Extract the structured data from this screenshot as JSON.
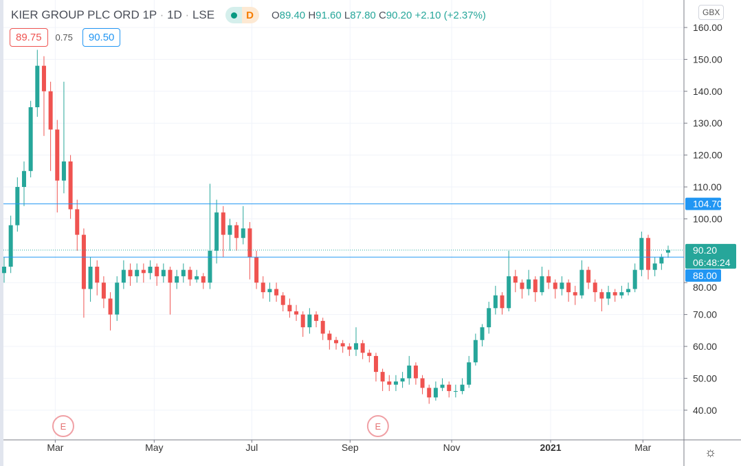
{
  "header": {
    "symbol": "KIER GROUP PLC ORD 1P",
    "sep": "·",
    "interval": "1D",
    "exchange": "LSE",
    "delay_badge": "D",
    "o_label": "O",
    "o": "89.40",
    "h_label": "H",
    "h": "91.60",
    "l_label": "L",
    "l": "87.80",
    "c_label": "C",
    "c": "90.20",
    "change": "+2.10 (+2.37%)"
  },
  "quote": {
    "bid": "89.75",
    "spread": "0.75",
    "ask": "90.50"
  },
  "currency": "GBX",
  "colors": {
    "up": "#26a69a",
    "down": "#ef5350",
    "hline": "#2196f3",
    "last": "#26a69a"
  },
  "chart_data": {
    "type": "candlestick",
    "title": "KIER GROUP PLC ORD 1P · 1D · LSE",
    "ylim": [
      30,
      164
    ],
    "yticks": [
      "160.00",
      "150.00",
      "140.00",
      "130.00",
      "120.00",
      "110.00",
      "100.00",
      "80.00",
      "70.00",
      "60.00",
      "50.00",
      "40.00"
    ],
    "yticks_values": [
      160,
      150,
      140,
      130,
      120,
      110,
      100,
      80,
      70,
      60,
      50,
      40
    ],
    "xticks": [
      {
        "label": "Mar",
        "i": 7.7
      },
      {
        "label": "May",
        "i": 22.6
      },
      {
        "label": "Jul",
        "i": 37.3
      },
      {
        "label": "Sep",
        "i": 52.1
      },
      {
        "label": "Nov",
        "i": 67.4
      },
      {
        "label": "2021",
        "i": 82.3,
        "bold": true
      },
      {
        "label": "Mar",
        "i": 96.2
      }
    ],
    "hlines": [
      {
        "value": 104.7,
        "label": "104.70"
      },
      {
        "value": 88.0,
        "label": "88.00"
      }
    ],
    "last": {
      "value": 90.2,
      "label": "90.20",
      "countdown": "06:48:24"
    },
    "events": [
      {
        "label": "E",
        "i": 8.9
      },
      {
        "label": "E",
        "i": 56.3
      }
    ],
    "candles": [
      [
        83,
        88,
        80,
        85
      ],
      [
        85,
        101,
        83,
        98
      ],
      [
        98,
        113,
        96,
        110
      ],
      [
        110,
        118,
        104,
        115
      ],
      [
        115,
        137,
        113,
        135
      ],
      [
        135,
        153,
        132,
        148
      ],
      [
        148,
        151,
        126,
        140
      ],
      [
        140,
        143,
        115,
        128
      ],
      [
        128,
        131,
        102,
        112
      ],
      [
        112,
        143,
        108,
        118
      ],
      [
        118,
        120,
        100,
        103
      ],
      [
        103,
        106,
        90,
        95
      ],
      [
        95,
        97,
        69,
        78
      ],
      [
        78,
        88,
        74,
        85
      ],
      [
        85,
        87,
        76,
        80
      ],
      [
        80,
        82,
        72,
        75
      ],
      [
        75,
        77,
        65,
        70
      ],
      [
        70,
        82,
        68,
        80
      ],
      [
        80,
        87,
        78,
        84
      ],
      [
        84,
        86,
        79,
        82
      ],
      [
        82,
        86,
        80,
        84
      ],
      [
        84,
        86,
        80,
        83
      ],
      [
        83,
        87,
        81,
        85
      ],
      [
        85,
        86,
        79,
        82
      ],
      [
        82,
        86,
        80,
        84
      ],
      [
        84,
        85,
        70,
        80
      ],
      [
        80,
        84,
        78,
        82
      ],
      [
        82,
        86,
        80,
        84
      ],
      [
        84,
        85,
        79,
        81
      ],
      [
        81,
        84,
        80,
        82
      ],
      [
        82,
        83,
        78,
        80
      ],
      [
        80,
        111,
        78,
        90
      ],
      [
        90,
        106,
        86,
        102
      ],
      [
        102,
        104,
        88,
        95
      ],
      [
        95,
        100,
        90,
        98
      ],
      [
        98,
        99,
        90,
        94
      ],
      [
        94,
        104,
        92,
        97
      ],
      [
        97,
        99,
        81,
        88
      ],
      [
        88,
        90,
        78,
        80
      ],
      [
        80,
        82,
        75,
        77
      ],
      [
        77,
        80,
        74,
        78
      ],
      [
        78,
        80,
        74,
        76
      ],
      [
        76,
        77,
        71,
        73
      ],
      [
        73,
        75,
        69,
        71
      ],
      [
        71,
        73,
        68,
        70
      ],
      [
        70,
        71,
        63,
        66
      ],
      [
        66,
        72,
        64,
        70
      ],
      [
        70,
        71,
        66,
        68
      ],
      [
        68,
        69,
        62,
        64
      ],
      [
        64,
        65,
        59,
        62
      ],
      [
        62,
        63,
        59,
        61
      ],
      [
        61,
        62,
        58,
        60
      ],
      [
        60,
        61,
        57,
        59
      ],
      [
        59,
        66,
        57,
        61
      ],
      [
        61,
        62,
        56,
        58
      ],
      [
        58,
        59,
        55,
        57
      ],
      [
        57,
        58,
        49,
        52
      ],
      [
        52,
        53,
        46,
        49
      ],
      [
        49,
        51,
        46,
        48
      ],
      [
        48,
        51,
        46,
        49
      ],
      [
        49,
        52,
        47,
        50
      ],
      [
        50,
        57,
        48,
        54
      ],
      [
        54,
        55,
        48,
        50
      ],
      [
        50,
        51,
        45,
        47
      ],
      [
        47,
        48,
        42,
        44
      ],
      [
        44,
        49,
        43,
        47
      ],
      [
        47,
        50,
        46,
        48
      ],
      [
        48,
        49,
        44,
        46
      ],
      [
        46,
        48,
        44,
        46
      ],
      [
        46,
        50,
        45,
        48
      ],
      [
        48,
        57,
        47,
        55
      ],
      [
        55,
        64,
        54,
        62
      ],
      [
        62,
        67,
        60,
        66
      ],
      [
        66,
        74,
        64,
        72
      ],
      [
        72,
        79,
        70,
        76
      ],
      [
        76,
        77,
        70,
        72
      ],
      [
        72,
        90,
        71,
        82
      ],
      [
        82,
        84,
        77,
        80
      ],
      [
        80,
        81,
        75,
        78
      ],
      [
        78,
        84,
        76,
        81
      ],
      [
        81,
        82,
        74,
        77
      ],
      [
        77,
        85,
        76,
        82
      ],
      [
        82,
        84,
        78,
        80
      ],
      [
        80,
        81,
        75,
        78
      ],
      [
        78,
        82,
        76,
        80
      ],
      [
        80,
        81,
        74,
        77
      ],
      [
        77,
        79,
        73,
        76
      ],
      [
        76,
        87,
        75,
        84
      ],
      [
        84,
        85,
        78,
        80
      ],
      [
        80,
        81,
        74,
        77
      ],
      [
        77,
        78,
        71,
        75
      ],
      [
        75,
        79,
        73,
        77
      ],
      [
        77,
        78,
        74,
        76
      ],
      [
        76,
        79,
        75,
        77
      ],
      [
        77,
        80,
        76,
        78
      ],
      [
        78,
        86,
        77,
        84
      ],
      [
        84,
        96,
        82,
        94
      ],
      [
        94,
        95,
        81,
        84
      ],
      [
        84,
        88,
        82,
        86
      ],
      [
        86,
        89,
        84,
        88.1
      ],
      [
        89.4,
        91.6,
        87.8,
        90.2
      ]
    ]
  }
}
